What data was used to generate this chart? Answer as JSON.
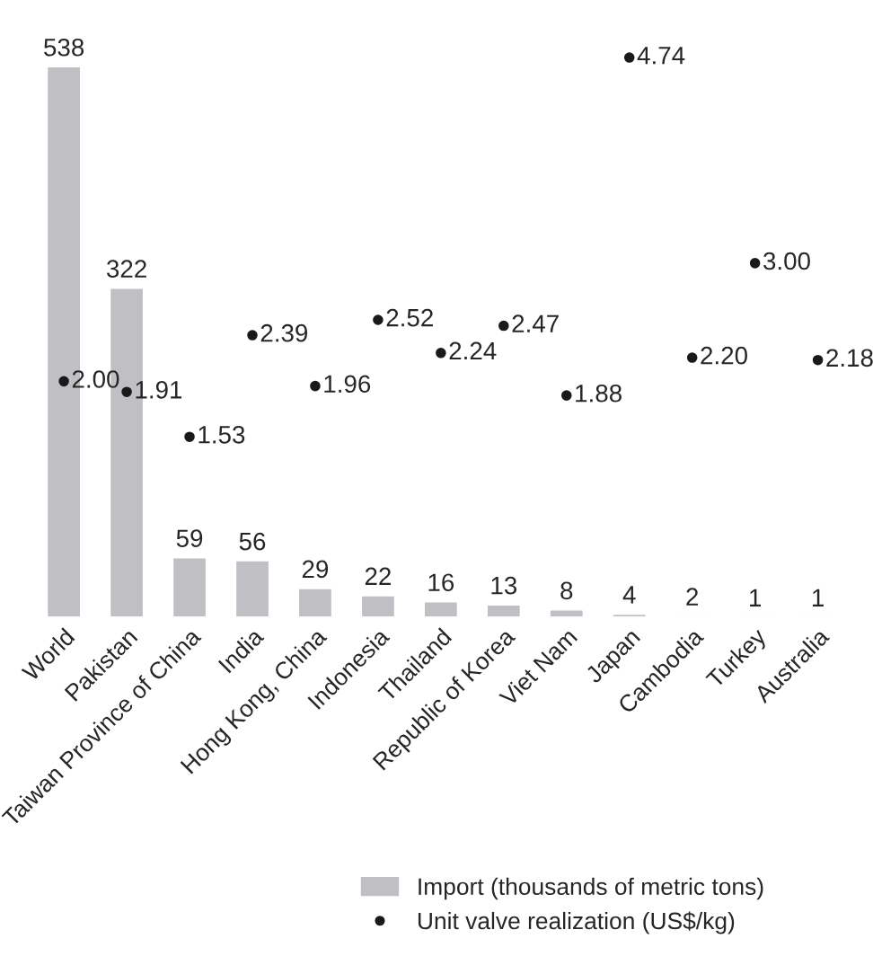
{
  "chart_data": {
    "type": "bar",
    "categories": [
      "World",
      "Pakistan",
      "Taiwan Province of China",
      "India",
      "Hong Kong, China",
      "Indonesia",
      "Thailand",
      "Republic of Korea",
      "Viet Nam",
      "Japan",
      "Cambodia",
      "Turkey",
      "Australia"
    ],
    "series": [
      {
        "name": "Import (thousands of metric tons)",
        "color": "#c0c0c4",
        "values": [
          538,
          322,
          59,
          56,
          29,
          22,
          16,
          13,
          8,
          4,
          2,
          1,
          1
        ]
      },
      {
        "name": "Unit valve realization (US$/kg)",
        "type": "scatter",
        "axis": "y2",
        "color": "#1a1a1a",
        "values": [
          2.0,
          1.91,
          1.53,
          2.39,
          1.96,
          2.52,
          2.24,
          2.47,
          1.88,
          4.74,
          2.2,
          3.0,
          2.18
        ],
        "value_labels": [
          "2.00",
          "1.91",
          "1.53",
          "2.39",
          "1.96",
          "2.52",
          "2.24",
          "2.47",
          "1.88",
          "4.74",
          "2.20",
          "3.00",
          "2.18"
        ]
      }
    ],
    "tick_labels": "x",
    "data_labels": true,
    "legend": "bottom",
    "marker": "circle",
    "grid": false
  }
}
